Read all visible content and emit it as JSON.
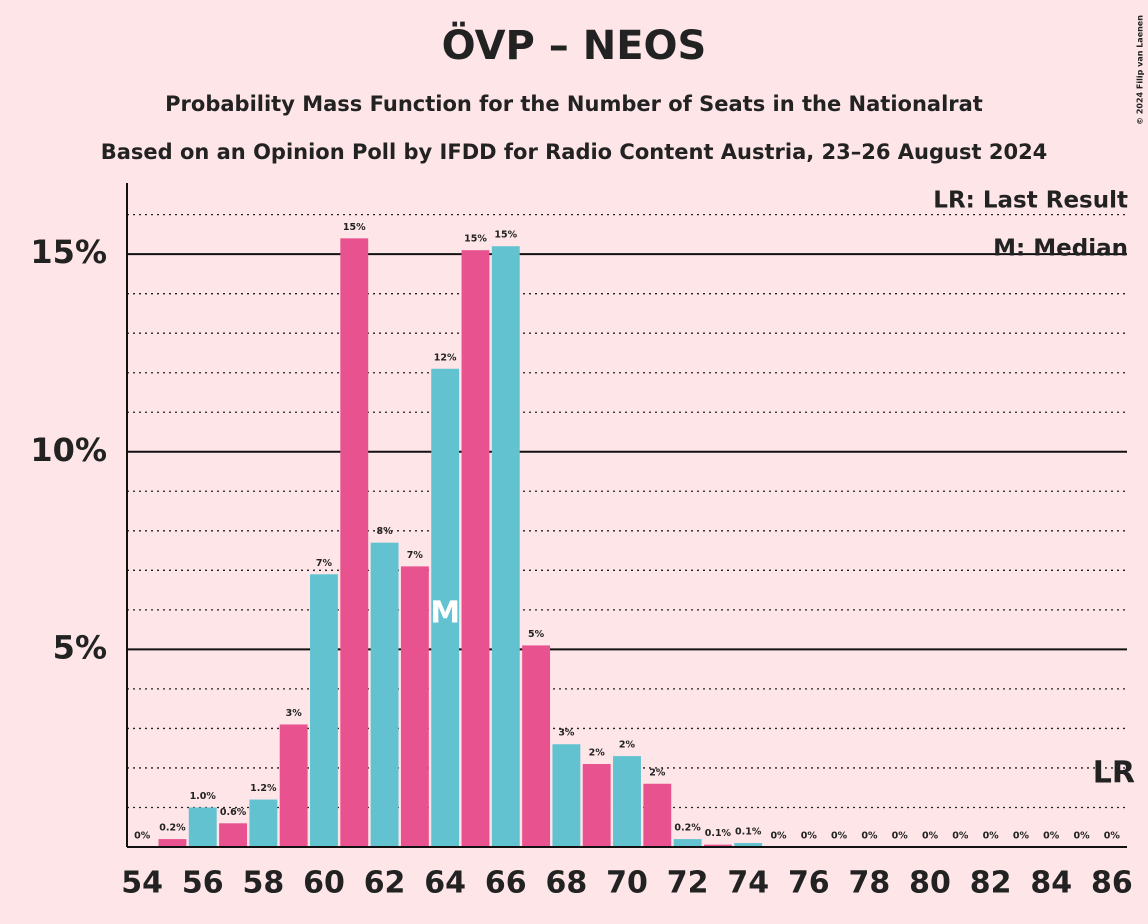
{
  "chart_data": {
    "type": "bar",
    "title": "ÖVP – NEOS",
    "subtitle": "Probability Mass Function for the Number of Seats in the Nationalrat",
    "subtitle2": "Based on an Opinion Poll by IFDD for Radio Content Austria, 23–26 August 2024",
    "copyright": "© 2024 Filip van Laenen",
    "x": [
      54,
      55,
      56,
      57,
      58,
      59,
      60,
      61,
      62,
      63,
      64,
      65,
      66,
      67,
      68,
      69,
      70,
      71,
      72,
      73,
      74,
      75,
      76,
      77,
      78,
      79,
      80,
      81,
      82,
      83,
      84,
      85,
      86
    ],
    "values": [
      0,
      0.2,
      1.0,
      0.6,
      1.2,
      3.1,
      6.9,
      15.4,
      7.7,
      7.1,
      12.1,
      15.1,
      15.2,
      5.1,
      2.6,
      2.1,
      2.3,
      1.6,
      0.2,
      0.06,
      0.1,
      0,
      0,
      0,
      0,
      0,
      0,
      0,
      0,
      0,
      0,
      0,
      0
    ],
    "value_labels": [
      "0%",
      "0.2%",
      "1.0%",
      "0.6%",
      "1.2%",
      "3%",
      "7%",
      "15%",
      "8%",
      "7%",
      "12%",
      "15%",
      "15%",
      "5%",
      "3%",
      "2%",
      "2%",
      "2%",
      "0.2%",
      "0.1%",
      "0.1%",
      "0%",
      "0%",
      "0%",
      "0%",
      "0%",
      "0%",
      "0%",
      "0%",
      "0%",
      "0%",
      "0%",
      "0%"
    ],
    "colors": [
      "#62c2d0",
      "#e8538f",
      "#62c2d0",
      "#e8538f",
      "#62c2d0",
      "#e8538f",
      "#62c2d0",
      "#e8538f",
      "#62c2d0",
      "#e8538f",
      "#62c2d0",
      "#e8538f",
      "#62c2d0",
      "#e8538f",
      "#62c2d0",
      "#e8538f",
      "#62c2d0",
      "#e8538f",
      "#62c2d0",
      "#e8538f",
      "#62c2d0",
      "#e8538f",
      "#62c2d0",
      "#e8538f",
      "#62c2d0",
      "#e8538f",
      "#62c2d0",
      "#e8538f",
      "#62c2d0",
      "#e8538f",
      "#62c2d0",
      "#e8538f",
      "#62c2d0"
    ],
    "xlim": [
      53.5,
      86.5
    ],
    "xticks": [
      54,
      56,
      58,
      60,
      62,
      64,
      66,
      68,
      70,
      72,
      74,
      76,
      78,
      80,
      82,
      84,
      86
    ],
    "ylim": [
      0,
      16.8
    ],
    "yticks": [
      {
        "value": 5,
        "label": "5%"
      },
      {
        "value": 10,
        "label": "10%"
      },
      {
        "value": 15,
        "label": "15%"
      }
    ],
    "minor_yticks": [
      1,
      2,
      3,
      4,
      6,
      7,
      8,
      9,
      11,
      12,
      13,
      14,
      16
    ],
    "grid": true,
    "legend": [
      "LR: Last Result",
      "M: Median"
    ],
    "median": {
      "x": 64,
      "label": "M"
    },
    "last_result": {
      "x": 86,
      "label": "LR"
    }
  }
}
